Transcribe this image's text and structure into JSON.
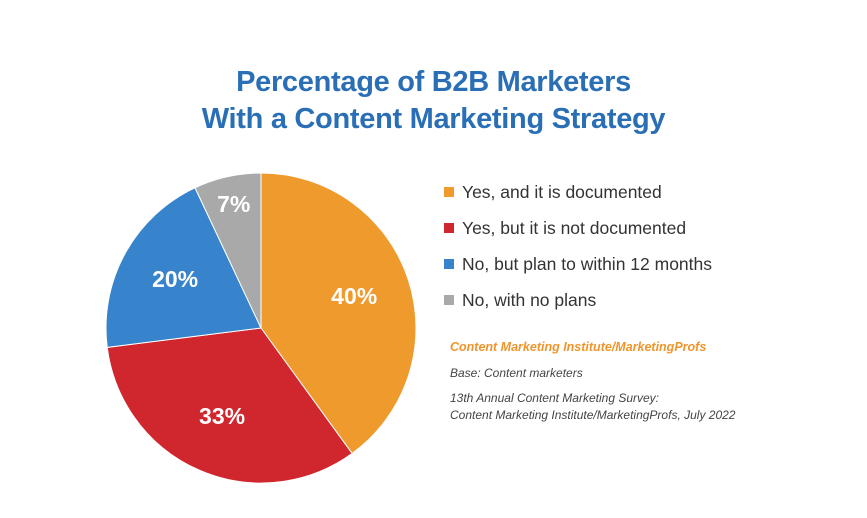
{
  "chart_data": {
    "type": "pie",
    "title": "Percentage of B2B Marketers With a Content Marketing Strategy",
    "title_lines": [
      "Percentage of B2B Marketers",
      "With a Content Marketing Strategy"
    ],
    "slices": [
      {
        "label": "Yes, and it is documented",
        "value": 40,
        "display": "40%",
        "color": "#ef9a2c"
      },
      {
        "label": "Yes, but it is not documented",
        "value": 33,
        "display": "33%",
        "color": "#d0262d"
      },
      {
        "label": "No, but plan to within 12 months",
        "value": 20,
        "display": "20%",
        "color": "#3784cc"
      },
      {
        "label": "No, with no plans",
        "value": 7,
        "display": "7%",
        "color": "#a9a9a9"
      }
    ],
    "legend_position": "right"
  },
  "source": {
    "org": "Content Marketing Institute/MarketingProfs",
    "base": "Base: Content marketers",
    "survey_line1": "13th Annual Content Marketing Survey:",
    "survey_line2": "Content Marketing Institute/MarketingProfs, July 2022"
  },
  "colors": {
    "title": "#2a6fb6",
    "source_accent": "#f0952b"
  }
}
